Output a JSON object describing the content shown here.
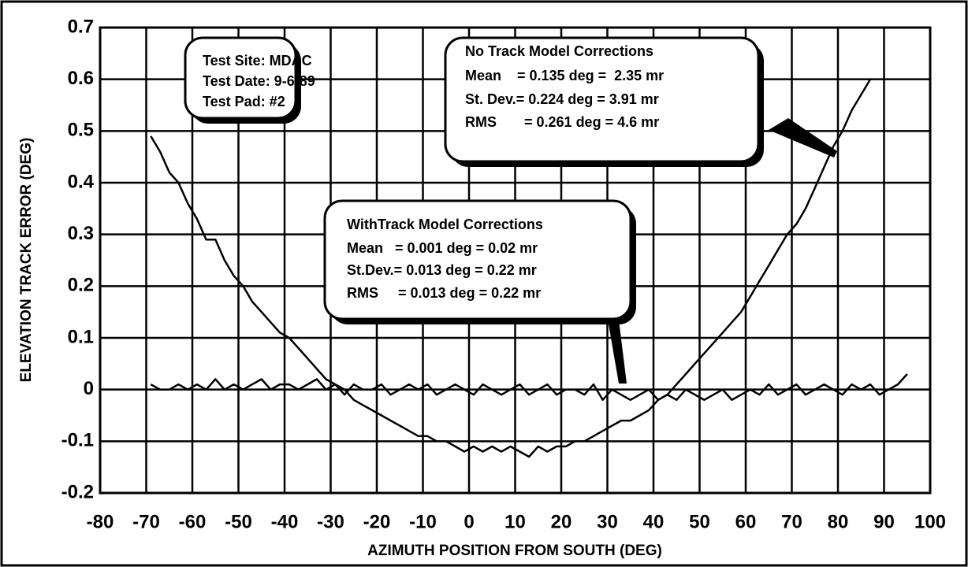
{
  "chart_data": {
    "type": "line",
    "xlabel": "AZIMUTH POSITION FROM SOUTH (DEG)",
    "ylabel": "ELEVATION TRACK ERROR (DEG)",
    "x": [
      -69,
      -67,
      -65,
      -63,
      -61,
      -59,
      -57,
      -55,
      -53,
      -51,
      -49,
      -47,
      -45,
      -43,
      -41,
      -39,
      -37,
      -35,
      -33,
      -31,
      -29,
      -27,
      -25,
      -23,
      -21,
      -19,
      -17,
      -15,
      -13,
      -11,
      -9,
      -7,
      -5,
      -3,
      -1,
      1,
      3,
      5,
      7,
      9,
      11,
      13,
      15,
      17,
      19,
      21,
      23,
      25,
      27,
      29,
      31,
      33,
      35,
      37,
      39,
      41,
      43,
      45,
      47,
      49,
      51,
      53,
      55,
      57,
      59,
      61,
      63,
      65,
      67,
      69,
      71,
      73,
      75,
      77,
      79,
      81,
      83,
      85,
      87,
      89,
      91,
      93,
      95
    ],
    "series": [
      {
        "name": "No Track Model Corrections",
        "color": "#000000",
        "values": [
          0.49,
          0.46,
          0.42,
          0.4,
          0.36,
          0.33,
          0.29,
          0.29,
          0.25,
          0.22,
          0.2,
          0.17,
          0.15,
          0.13,
          0.11,
          0.1,
          0.08,
          0.06,
          0.04,
          0.02,
          0.01,
          0.0,
          -0.02,
          -0.03,
          -0.04,
          -0.05,
          -0.06,
          -0.07,
          -0.08,
          -0.09,
          -0.09,
          -0.1,
          -0.1,
          -0.11,
          -0.12,
          -0.11,
          -0.12,
          -0.11,
          -0.12,
          -0.11,
          -0.12,
          -0.13,
          -0.11,
          -0.12,
          -0.11,
          -0.11,
          -0.1,
          -0.1,
          -0.09,
          -0.08,
          -0.07,
          -0.06,
          -0.06,
          -0.05,
          -0.04,
          -0.02,
          -0.01,
          0.01,
          0.03,
          0.05,
          0.07,
          0.09,
          0.11,
          0.13,
          0.15,
          0.18,
          0.21,
          0.24,
          0.27,
          0.3,
          0.32,
          0.35,
          0.39,
          0.43,
          0.47,
          0.5,
          0.54,
          0.57,
          0.6,
          null,
          null,
          null,
          null
        ]
      },
      {
        "name": "WithTrack Model Corrections",
        "color": "#000000",
        "values": [
          0.01,
          0.0,
          0.0,
          0.01,
          0.0,
          0.01,
          0.0,
          0.02,
          0.0,
          0.01,
          0.0,
          0.01,
          0.02,
          0.0,
          0.01,
          0.01,
          0.0,
          0.01,
          0.02,
          0.0,
          0.01,
          -0.01,
          0.01,
          0.0,
          0.0,
          0.01,
          -0.01,
          0.0,
          0.01,
          0.0,
          0.01,
          -0.01,
          0.0,
          0.01,
          0.0,
          -0.01,
          0.01,
          0.0,
          -0.01,
          0.0,
          0.01,
          -0.01,
          0.0,
          0.01,
          -0.01,
          0.0,
          0.0,
          -0.01,
          0.01,
          -0.02,
          0.0,
          -0.01,
          -0.02,
          -0.01,
          0.0,
          -0.02,
          -0.01,
          -0.02,
          0.0,
          -0.01,
          -0.02,
          -0.01,
          0.0,
          -0.02,
          -0.01,
          0.0,
          -0.01,
          0.01,
          -0.01,
          0.0,
          0.01,
          -0.01,
          0.0,
          0.01,
          0.0,
          -0.01,
          0.01,
          0.0,
          0.01,
          -0.01,
          0.0,
          0.01,
          0.03
        ]
      }
    ],
    "annotations": [
      {
        "lines": [
          "Test Site: MDAC",
          "Test Date: 9-6-89",
          "Test Pad: #2"
        ]
      },
      {
        "lines": [
          "No Track Model Corrections",
          "Mean    = 0.135 deg =  2.35 mr",
          "St. Dev.= 0.224 deg = 3.91 mr",
          "RMS       = 0.261 deg = 4.6 mr"
        ]
      },
      {
        "lines": [
          "WithTrack Model Corrections",
          "Mean   = 0.001 deg = 0.02 mr",
          "St.Dev.= 0.013 deg = 0.22 mr",
          "RMS     = 0.013 deg = 0.22 mr"
        ]
      }
    ],
    "xlim": [
      -80,
      100
    ],
    "xticks": [
      -80,
      -70,
      -60,
      -50,
      -40,
      -30,
      -20,
      -10,
      0,
      10,
      20,
      30,
      40,
      50,
      60,
      70,
      80,
      90,
      100
    ],
    "ylim": [
      -0.2,
      0.7
    ],
    "yticks": [
      -0.2,
      -0.1,
      0,
      0.1,
      0.2,
      0.3,
      0.4,
      0.5,
      0.6,
      0.7
    ],
    "grid": true
  }
}
